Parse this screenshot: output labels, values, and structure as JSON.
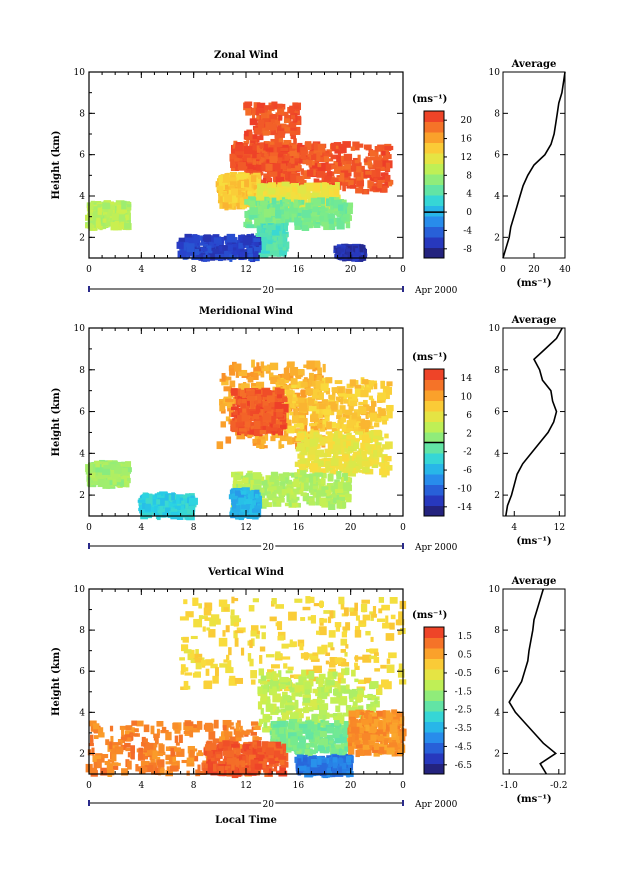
{
  "chart_data": [
    {
      "type": "heatmap",
      "title": "Zonal Wind",
      "ylabel": "Height (km)",
      "xlabel": "",
      "ylim": [
        1,
        10
      ],
      "xlim": [
        0,
        24
      ],
      "y_ticks": [
        "2",
        "4",
        "6",
        "8",
        "10"
      ],
      "x_ticks": [
        "0",
        "4",
        "8",
        "12",
        "16",
        "20",
        "0"
      ],
      "date_label": "20",
      "date_suffix": "Apr 2000",
      "colorbar": {
        "unit": "(ms⁻¹)",
        "ticks": [
          "-8",
          "-4",
          "0",
          "4",
          "8",
          "12",
          "16",
          "20"
        ],
        "range": [
          -10,
          22
        ],
        "line_at": "0"
      },
      "avg_title": "Average",
      "avg_xlabel": "(ms⁻¹)",
      "avg_x_ticks": [
        "0",
        "20",
        "40"
      ],
      "avg_xlim": [
        0,
        40
      ],
      "avg_profile": [
        [
          1.0,
          0
        ],
        [
          1.5,
          2
        ],
        [
          2.0,
          4
        ],
        [
          2.5,
          5
        ],
        [
          3.0,
          7
        ],
        [
          3.5,
          9
        ],
        [
          4.0,
          11
        ],
        [
          4.5,
          13
        ],
        [
          5.0,
          16
        ],
        [
          5.5,
          20
        ],
        [
          6.0,
          27
        ],
        [
          6.5,
          31
        ],
        [
          7.0,
          33
        ],
        [
          7.5,
          34
        ],
        [
          8.0,
          35
        ],
        [
          8.5,
          36
        ],
        [
          9.0,
          38
        ],
        [
          9.5,
          39
        ],
        [
          10.0,
          40
        ]
      ],
      "field": [
        {
          "x": [
            12,
            16,
            0,
            11
          ],
          "y": [
            4.5,
            8.5,
            0,
            0
          ],
          "value": 20
        },
        {
          "x": [
            11,
            16,
            8,
            15
          ],
          "y": [
            5.3,
            6.5,
            0,
            0
          ],
          "value": 20
        },
        {
          "x": [
            16,
            23,
            7,
            14
          ],
          "y": [
            4.2,
            6.5,
            0,
            0
          ],
          "value": 20
        },
        {
          "x": [
            10,
            13,
            11,
            9
          ],
          "y": [
            3.5,
            5,
            0,
            0
          ],
          "value": 14
        },
        {
          "x": [
            13,
            19,
            6,
            11
          ],
          "y": [
            3.5,
            4.5,
            0,
            0
          ],
          "value": 12
        },
        {
          "x": [
            12,
            20,
            5,
            9
          ],
          "y": [
            2.5,
            3.8,
            0,
            0
          ],
          "value": 6
        },
        {
          "x": [
            13,
            15,
            4,
            7
          ],
          "y": [
            1.2,
            2.5,
            0,
            0
          ],
          "value": 4
        },
        {
          "x": [
            7,
            13,
            6,
            11
          ],
          "y": [
            1.0,
            2.0,
            0,
            0
          ],
          "value": -6
        },
        {
          "x": [
            19,
            21,
            3,
            5
          ],
          "y": [
            1.0,
            1.5,
            0,
            0
          ],
          "value": -7
        },
        {
          "x": [
            0,
            3,
            3,
            5
          ],
          "y": [
            2.5,
            3.6,
            0,
            0
          ],
          "value": 9
        }
      ]
    },
    {
      "type": "heatmap",
      "title": "Meridional Wind",
      "ylabel": "Height (km)",
      "xlabel": "",
      "ylim": [
        1,
        10
      ],
      "xlim": [
        0,
        24
      ],
      "y_ticks": [
        "2",
        "4",
        "6",
        "8",
        "10"
      ],
      "x_ticks": [
        "0",
        "4",
        "8",
        "12",
        "16",
        "20",
        "0"
      ],
      "date_label": "20",
      "date_suffix": "Apr 2000",
      "colorbar": {
        "unit": "(ms⁻¹)",
        "ticks": [
          "-14",
          "-10",
          "-6",
          "-2",
          "2",
          "6",
          "10",
          "14"
        ],
        "range": [
          -16,
          16
        ],
        "line_at": "0"
      },
      "avg_title": "Average",
      "avg_xlabel": "(ms⁻¹)",
      "avg_x_ticks": [
        "4",
        "12"
      ],
      "avg_xlim": [
        2,
        13
      ],
      "avg_profile": [
        [
          1.0,
          2.5
        ],
        [
          1.5,
          2.8
        ],
        [
          2.0,
          3.5
        ],
        [
          2.5,
          4.0
        ],
        [
          3.0,
          4.5
        ],
        [
          3.5,
          5.5
        ],
        [
          4.0,
          7.0
        ],
        [
          4.5,
          8.5
        ],
        [
          5.0,
          10.0
        ],
        [
          5.5,
          11.0
        ],
        [
          6.0,
          11.5
        ],
        [
          6.5,
          10.8
        ],
        [
          7.0,
          10.5
        ],
        [
          7.5,
          9.0
        ],
        [
          8.0,
          8.5
        ],
        [
          8.5,
          7.5
        ],
        [
          9.0,
          9.5
        ],
        [
          9.5,
          11.5
        ],
        [
          10.0,
          12.5
        ]
      ],
      "field": [
        {
          "x": [
            10,
            18,
            6,
            14
          ],
          "y": [
            4.3,
            8.3,
            0,
            0
          ],
          "value": 10
        },
        {
          "x": [
            14,
            23,
            5,
            11
          ],
          "y": [
            5,
            7.5,
            0,
            0
          ],
          "value": 8
        },
        {
          "x": [
            11,
            15,
            8,
            13
          ],
          "y": [
            5,
            7,
            0,
            0
          ],
          "value": 14
        },
        {
          "x": [
            16,
            23,
            4,
            8
          ],
          "y": [
            3,
            5,
            0,
            0
          ],
          "value": 6
        },
        {
          "x": [
            11,
            20,
            7,
            11
          ],
          "y": [
            1.5,
            3,
            0,
            0
          ],
          "value": 3
        },
        {
          "x": [
            11,
            13,
            3,
            6
          ],
          "y": [
            1.0,
            2.2,
            0,
            0
          ],
          "value": -6
        },
        {
          "x": [
            4,
            8,
            3,
            5
          ],
          "y": [
            1.0,
            2.0,
            0,
            0
          ],
          "value": -4
        },
        {
          "x": [
            0,
            3,
            3,
            6
          ],
          "y": [
            2.5,
            3.5,
            0,
            0
          ],
          "value": 2
        }
      ]
    },
    {
      "type": "heatmap",
      "title": "Vertical Wind",
      "ylabel": "Height (km)",
      "xlabel": "Local Time",
      "ylim": [
        1,
        10
      ],
      "xlim": [
        0,
        24
      ],
      "y_ticks": [
        "2",
        "4",
        "6",
        "8",
        "10"
      ],
      "x_ticks": [
        "0",
        "4",
        "8",
        "12",
        "16",
        "20",
        "0"
      ],
      "date_label": "20",
      "date_suffix": "Apr 2000",
      "colorbar": {
        "unit": "(ms⁻¹)",
        "ticks": [
          "-6.5",
          "-4.5",
          "-3.5",
          "-2.5",
          "-1.5",
          "-0.5",
          "0.5",
          "1.5"
        ],
        "range": [
          -7,
          2
        ],
        "line_at": ""
      },
      "avg_title": "Average",
      "avg_xlabel": "(ms⁻¹)",
      "avg_x_ticks": [
        "-1.0",
        "-0.2"
      ],
      "avg_xlim": [
        -1.1,
        -0.1
      ],
      "avg_profile": [
        [
          1.0,
          -0.4
        ],
        [
          1.5,
          -0.5
        ],
        [
          2.0,
          -0.25
        ],
        [
          2.5,
          -0.45
        ],
        [
          3.0,
          -0.6
        ],
        [
          3.5,
          -0.75
        ],
        [
          4.0,
          -0.9
        ],
        [
          4.5,
          -1.0
        ],
        [
          5.0,
          -0.9
        ],
        [
          5.5,
          -0.8
        ],
        [
          6.0,
          -0.75
        ],
        [
          6.5,
          -0.7
        ],
        [
          7.0,
          -0.68
        ],
        [
          7.5,
          -0.65
        ],
        [
          8.0,
          -0.62
        ],
        [
          8.5,
          -0.6
        ],
        [
          9.0,
          -0.55
        ],
        [
          9.5,
          -0.5
        ],
        [
          10.0,
          -0.45
        ]
      ],
      "field": [
        {
          "x": [
            7,
            24,
            14,
            22
          ],
          "y": [
            5,
            9.5,
            0,
            0
          ],
          "value": -0.5
        },
        {
          "x": [
            13,
            22,
            10,
            17
          ],
          "y": [
            3,
            6,
            0,
            0
          ],
          "value": -1.5
        },
        {
          "x": [
            14,
            20,
            8,
            14
          ],
          "y": [
            2,
            3.5,
            0,
            0
          ],
          "value": -2.5
        },
        {
          "x": [
            16,
            20,
            4,
            8
          ],
          "y": [
            1.0,
            1.8,
            0,
            0
          ],
          "value": -5
        },
        {
          "x": [
            0,
            13,
            20,
            30
          ],
          "y": [
            1.0,
            3.5,
            0,
            0
          ],
          "value": 0.8
        },
        {
          "x": [
            9,
            15,
            6,
            10
          ],
          "y": [
            1.0,
            2.5,
            0,
            0
          ],
          "value": 1.4
        },
        {
          "x": [
            20,
            24,
            5,
            9
          ],
          "y": [
            2,
            4,
            0,
            0
          ],
          "value": 0.6
        }
      ]
    }
  ]
}
